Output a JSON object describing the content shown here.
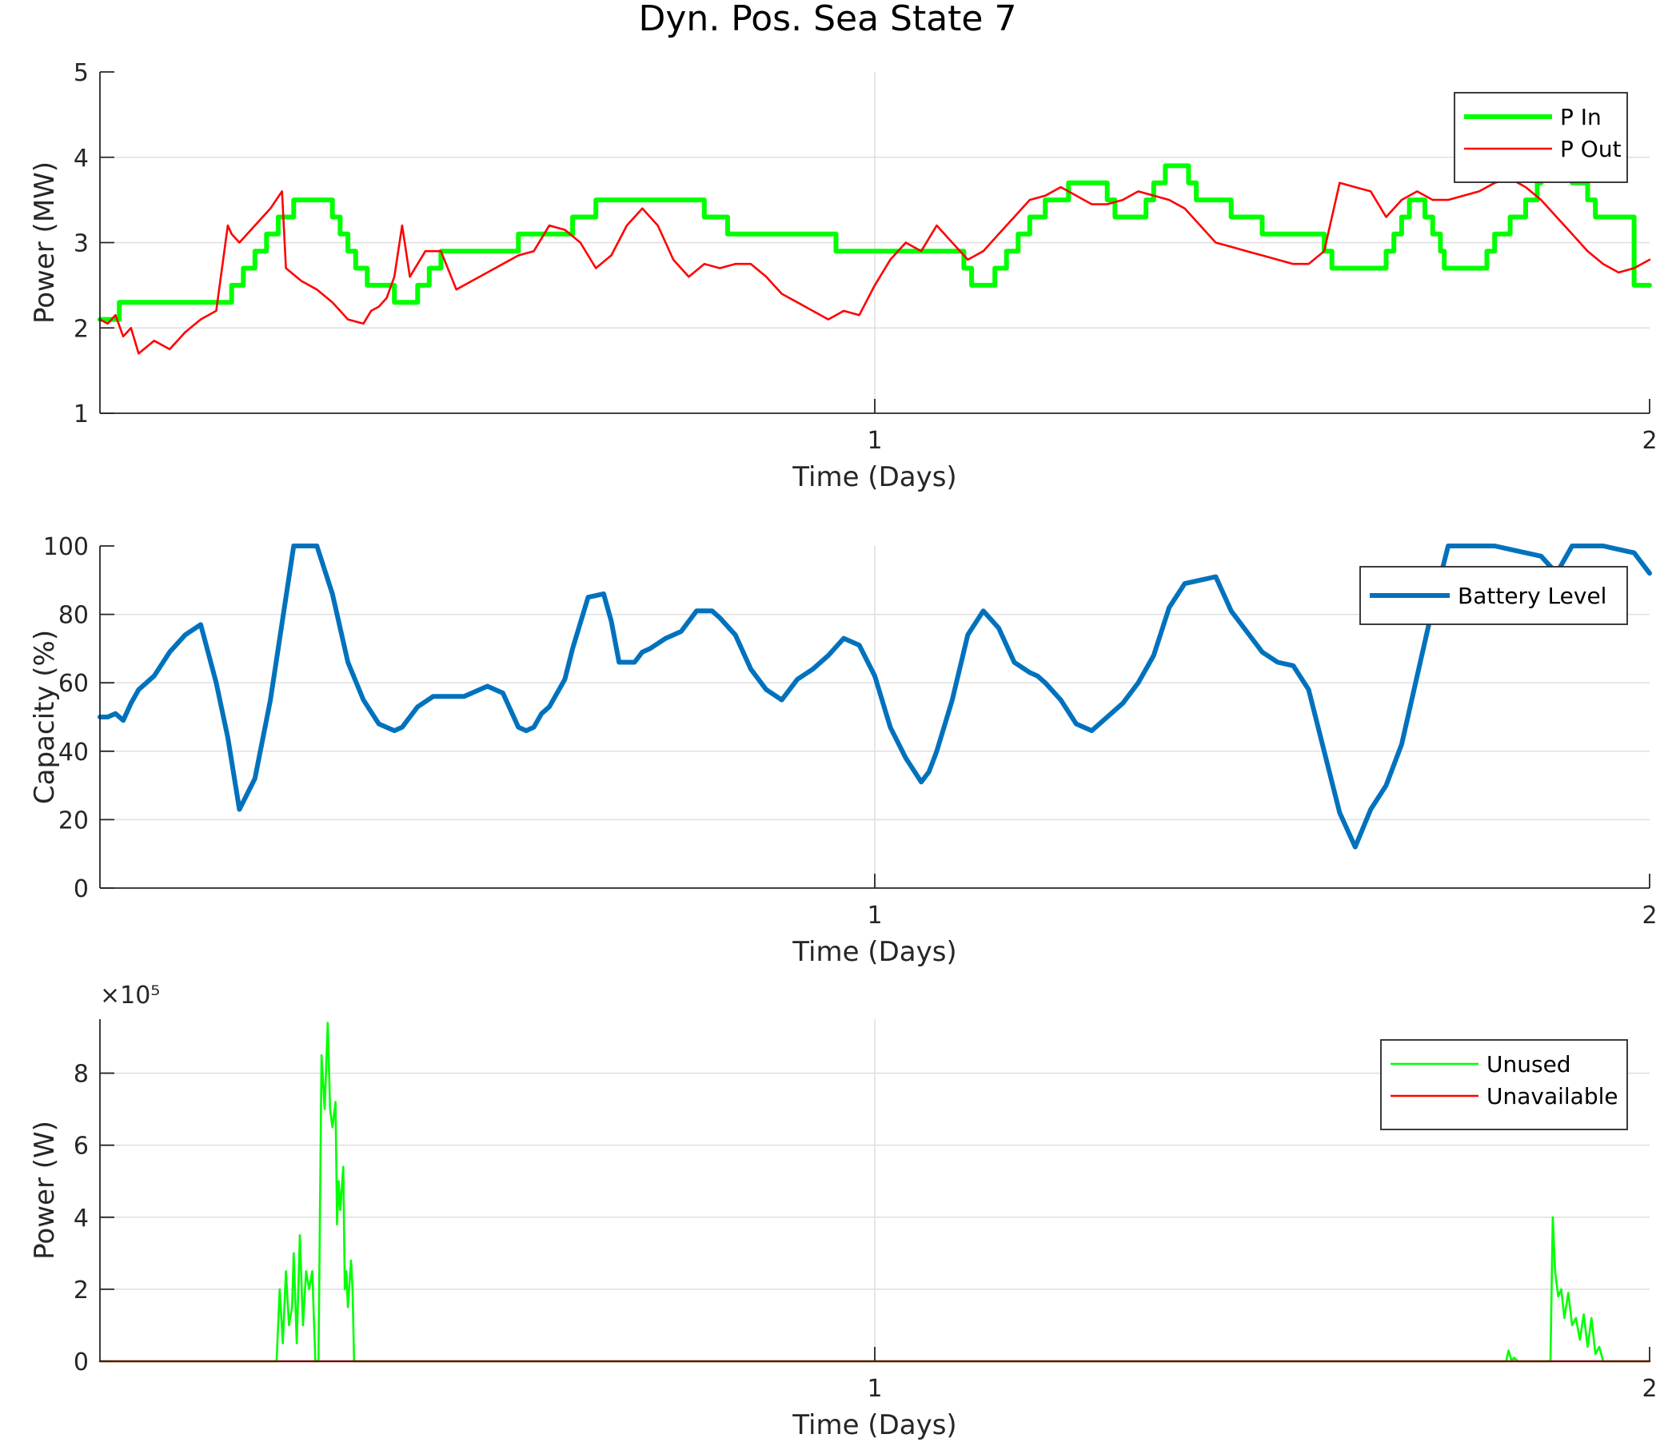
{
  "figure": {
    "title": "Dyn. Pos. Sea State 7"
  },
  "chart_data": [
    {
      "type": "line",
      "id": "power",
      "xlabel": "Time (Days)",
      "ylabel": "Power (MW)",
      "xlim": [
        0,
        2
      ],
      "ylim": [
        1,
        5
      ],
      "xticks": [
        1,
        2
      ],
      "yticks": [
        1,
        2,
        3,
        4,
        5
      ],
      "grid": true,
      "legend": "top-right",
      "series": [
        {
          "name": "P In",
          "color": "#00ff00",
          "step": true,
          "x": [
            0,
            0.025,
            0.155,
            0.17,
            0.185,
            0.2,
            0.215,
            0.23,
            0.25,
            0.29,
            0.3,
            0.31,
            0.32,
            0.33,
            0.345,
            0.38,
            0.41,
            0.425,
            0.44,
            0.52,
            0.54,
            0.61,
            0.64,
            0.78,
            0.81,
            0.95,
            1.01,
            1.115,
            1.125,
            1.14,
            1.155,
            1.17,
            1.185,
            1.2,
            1.22,
            1.25,
            1.275,
            1.3,
            1.31,
            1.32,
            1.35,
            1.36,
            1.375,
            1.39,
            1.405,
            1.415,
            1.46,
            1.5,
            1.58,
            1.59,
            1.6,
            1.63,
            1.66,
            1.67,
            1.68,
            1.69,
            1.7,
            1.71,
            1.72,
            1.73,
            1.735,
            1.75,
            1.79,
            1.8,
            1.82,
            1.84,
            1.855,
            1.86,
            1.87,
            1.88,
            1.9,
            1.92,
            1.93,
            1.98
          ],
          "y": [
            2.1,
            2.3,
            2.3,
            2.5,
            2.7,
            2.9,
            3.1,
            3.3,
            3.5,
            3.5,
            3.3,
            3.1,
            2.9,
            2.7,
            2.5,
            2.3,
            2.5,
            2.7,
            2.9,
            2.9,
            3.1,
            3.3,
            3.5,
            3.3,
            3.1,
            2.9,
            2.9,
            2.7,
            2.5,
            2.5,
            2.7,
            2.9,
            3.1,
            3.3,
            3.5,
            3.7,
            3.7,
            3.5,
            3.3,
            3.3,
            3.5,
            3.7,
            3.9,
            3.9,
            3.7,
            3.5,
            3.3,
            3.1,
            2.9,
            2.7,
            2.7,
            2.7,
            2.9,
            3.1,
            3.3,
            3.5,
            3.5,
            3.3,
            3.1,
            2.9,
            2.7,
            2.7,
            2.9,
            3.1,
            3.3,
            3.5,
            3.7,
            3.9,
            4.0,
            3.9,
            3.7,
            3.5,
            3.3,
            2.5
          ]
        },
        {
          "name": "P Out",
          "color": "#ff0000",
          "step": false,
          "x": [
            0,
            0.01,
            0.02,
            0.03,
            0.04,
            0.05,
            0.07,
            0.09,
            0.11,
            0.13,
            0.15,
            0.165,
            0.17,
            0.18,
            0.2,
            0.22,
            0.235,
            0.24,
            0.26,
            0.28,
            0.3,
            0.32,
            0.34,
            0.35,
            0.36,
            0.37,
            0.38,
            0.39,
            0.4,
            0.42,
            0.44,
            0.46,
            0.48,
            0.5,
            0.52,
            0.54,
            0.56,
            0.58,
            0.6,
            0.62,
            0.64,
            0.66,
            0.68,
            0.7,
            0.72,
            0.74,
            0.76,
            0.78,
            0.8,
            0.82,
            0.84,
            0.86,
            0.88,
            0.9,
            0.92,
            0.94,
            0.96,
            0.98,
            1.0,
            1.02,
            1.04,
            1.06,
            1.08,
            1.1,
            1.12,
            1.14,
            1.16,
            1.18,
            1.2,
            1.22,
            1.24,
            1.26,
            1.28,
            1.3,
            1.32,
            1.34,
            1.36,
            1.38,
            1.4,
            1.42,
            1.44,
            1.46,
            1.48,
            1.5,
            1.52,
            1.54,
            1.56,
            1.58,
            1.6,
            1.62,
            1.64,
            1.66,
            1.68,
            1.7,
            1.72,
            1.74,
            1.76,
            1.78,
            1.8,
            1.82,
            1.84,
            1.86,
            1.88,
            1.9,
            1.92,
            1.94,
            1.96,
            1.98,
            2.0
          ],
          "y": [
            2.1,
            2.05,
            2.15,
            1.9,
            2.0,
            1.7,
            1.85,
            1.75,
            1.95,
            2.1,
            2.2,
            3.2,
            3.1,
            3.0,
            3.2,
            3.4,
            3.6,
            2.7,
            2.55,
            2.45,
            2.3,
            2.1,
            2.05,
            2.2,
            2.25,
            2.35,
            2.6,
            3.2,
            2.6,
            2.9,
            2.9,
            2.45,
            2.55,
            2.65,
            2.75,
            2.85,
            2.9,
            3.2,
            3.15,
            3.0,
            2.7,
            2.85,
            3.2,
            3.4,
            3.2,
            2.8,
            2.6,
            2.75,
            2.7,
            2.75,
            2.75,
            2.6,
            2.4,
            2.3,
            2.2,
            2.1,
            2.2,
            2.15,
            2.5,
            2.8,
            3.0,
            2.9,
            3.2,
            3.0,
            2.8,
            2.9,
            3.1,
            3.3,
            3.5,
            3.55,
            3.65,
            3.55,
            3.45,
            3.45,
            3.5,
            3.6,
            3.55,
            3.5,
            3.4,
            3.2,
            3.0,
            2.95,
            2.9,
            2.85,
            2.8,
            2.75,
            2.75,
            2.9,
            3.7,
            3.65,
            3.6,
            3.3,
            3.5,
            3.6,
            3.5,
            3.5,
            3.55,
            3.6,
            3.7,
            3.75,
            3.65,
            3.5,
            3.3,
            3.1,
            2.9,
            2.75,
            2.65,
            2.7,
            2.8
          ]
        }
      ]
    },
    {
      "type": "line",
      "id": "battery",
      "xlabel": "Time (Days)",
      "ylabel": "Capacity (%)",
      "xlim": [
        0,
        2
      ],
      "ylim": [
        0,
        100
      ],
      "xticks": [
        1,
        2
      ],
      "yticks": [
        0,
        20,
        40,
        60,
        80,
        100
      ],
      "grid": true,
      "legend": "top-right",
      "series": [
        {
          "name": "Battery Level",
          "color": "#0072bd",
          "x": [
            0,
            0.01,
            0.02,
            0.03,
            0.04,
            0.05,
            0.07,
            0.09,
            0.11,
            0.13,
            0.15,
            0.165,
            0.18,
            0.2,
            0.22,
            0.23,
            0.24,
            0.25,
            0.26,
            0.27,
            0.28,
            0.3,
            0.32,
            0.34,
            0.36,
            0.38,
            0.39,
            0.4,
            0.41,
            0.43,
            0.45,
            0.47,
            0.5,
            0.52,
            0.54,
            0.55,
            0.56,
            0.57,
            0.58,
            0.6,
            0.61,
            0.63,
            0.65,
            0.66,
            0.67,
            0.69,
            0.7,
            0.71,
            0.73,
            0.75,
            0.77,
            0.79,
            0.8,
            0.82,
            0.84,
            0.86,
            0.88,
            0.9,
            0.92,
            0.94,
            0.96,
            0.98,
            1.0,
            1.02,
            1.04,
            1.06,
            1.07,
            1.08,
            1.1,
            1.12,
            1.14,
            1.16,
            1.18,
            1.2,
            1.21,
            1.22,
            1.24,
            1.26,
            1.28,
            1.3,
            1.32,
            1.34,
            1.36,
            1.38,
            1.4,
            1.42,
            1.44,
            1.46,
            1.48,
            1.5,
            1.52,
            1.54,
            1.56,
            1.58,
            1.6,
            1.62,
            1.64,
            1.66,
            1.68,
            1.7,
            1.72,
            1.74,
            1.76,
            1.78,
            1.8,
            1.82,
            1.84,
            1.86,
            1.88,
            1.9,
            1.92,
            1.94,
            1.96,
            1.98,
            2.0
          ],
          "y": [
            50,
            50,
            51,
            49,
            54,
            58,
            62,
            69,
            74,
            77,
            60,
            44,
            23,
            32,
            55,
            70,
            85,
            100,
            100,
            100,
            100,
            86,
            66,
            55,
            48,
            46,
            47,
            50,
            53,
            56,
            56,
            56,
            59,
            57,
            47,
            46,
            47,
            51,
            53,
            61,
            70,
            85,
            86,
            78,
            66,
            66,
            69,
            70,
            73,
            75,
            81,
            81,
            79,
            74,
            64,
            58,
            55,
            61,
            64,
            68,
            73,
            71,
            62,
            47,
            38,
            31,
            34,
            40,
            55,
            74,
            81,
            76,
            66,
            63,
            62,
            60,
            55,
            48,
            46,
            50,
            54,
            60,
            68,
            82,
            89,
            90,
            91,
            81,
            75,
            69,
            66,
            65,
            58,
            40,
            22,
            12,
            23,
            30,
            42,
            62,
            82,
            100,
            100,
            100,
            100,
            99,
            98,
            97,
            92,
            100,
            100,
            100,
            99,
            98,
            92
          ]
        }
      ]
    },
    {
      "type": "line",
      "id": "unused",
      "xlabel": "Time (Days)",
      "ylabel": "Power (W)",
      "exponent_label": "×10⁵",
      "xlim": [
        0,
        2
      ],
      "ylim": [
        0,
        950000
      ],
      "xticks": [
        1,
        2
      ],
      "yticks": [
        0,
        200000,
        400000,
        600000,
        800000
      ],
      "ytick_labels": [
        "0",
        "2",
        "4",
        "6",
        "8"
      ],
      "grid": true,
      "legend": "top-right",
      "series": [
        {
          "name": "Unused",
          "color": "#00ff00",
          "x": [
            0,
            0.228,
            0.232,
            0.236,
            0.24,
            0.244,
            0.248,
            0.25,
            0.254,
            0.258,
            0.262,
            0.266,
            0.27,
            0.274,
            0.278,
            0.282,
            0.286,
            0.29,
            0.294,
            0.297,
            0.3,
            0.304,
            0.306,
            0.308,
            0.31,
            0.314,
            0.316,
            0.318,
            0.32,
            0.324,
            0.326,
            0.328,
            0.33,
            0.334,
            0.34,
            0.344,
            0.348,
            0.352,
            0.6,
            1.0,
            1.8,
            1.815,
            1.818,
            1.822,
            1.825,
            1.83,
            1.833,
            1.84,
            1.843,
            1.86,
            1.872,
            1.875,
            1.878,
            1.882,
            1.886,
            1.89,
            1.895,
            1.9,
            1.905,
            1.91,
            1.915,
            1.92,
            1.925,
            1.93,
            1.935,
            1.94,
            2.0
          ],
          "y": [
            0,
            0,
            200000,
            50000,
            250000,
            100000,
            150000,
            300000,
            50000,
            350000,
            100000,
            250000,
            200000,
            250000,
            0,
            0,
            850000,
            700000,
            940000,
            700000,
            650000,
            720000,
            380000,
            500000,
            420000,
            540000,
            200000,
            250000,
            150000,
            280000,
            200000,
            0,
            0,
            0,
            0,
            0,
            0,
            0,
            0,
            0,
            0,
            0,
            30000,
            0,
            10000,
            0,
            0,
            0,
            0,
            0,
            0,
            400000,
            250000,
            180000,
            200000,
            120000,
            190000,
            100000,
            120000,
            60000,
            130000,
            40000,
            120000,
            20000,
            40000,
            0,
            0
          ]
        },
        {
          "name": "Unavailable",
          "color": "#ff0000",
          "x": [
            0,
            2
          ],
          "y": [
            0,
            0
          ]
        }
      ]
    }
  ]
}
